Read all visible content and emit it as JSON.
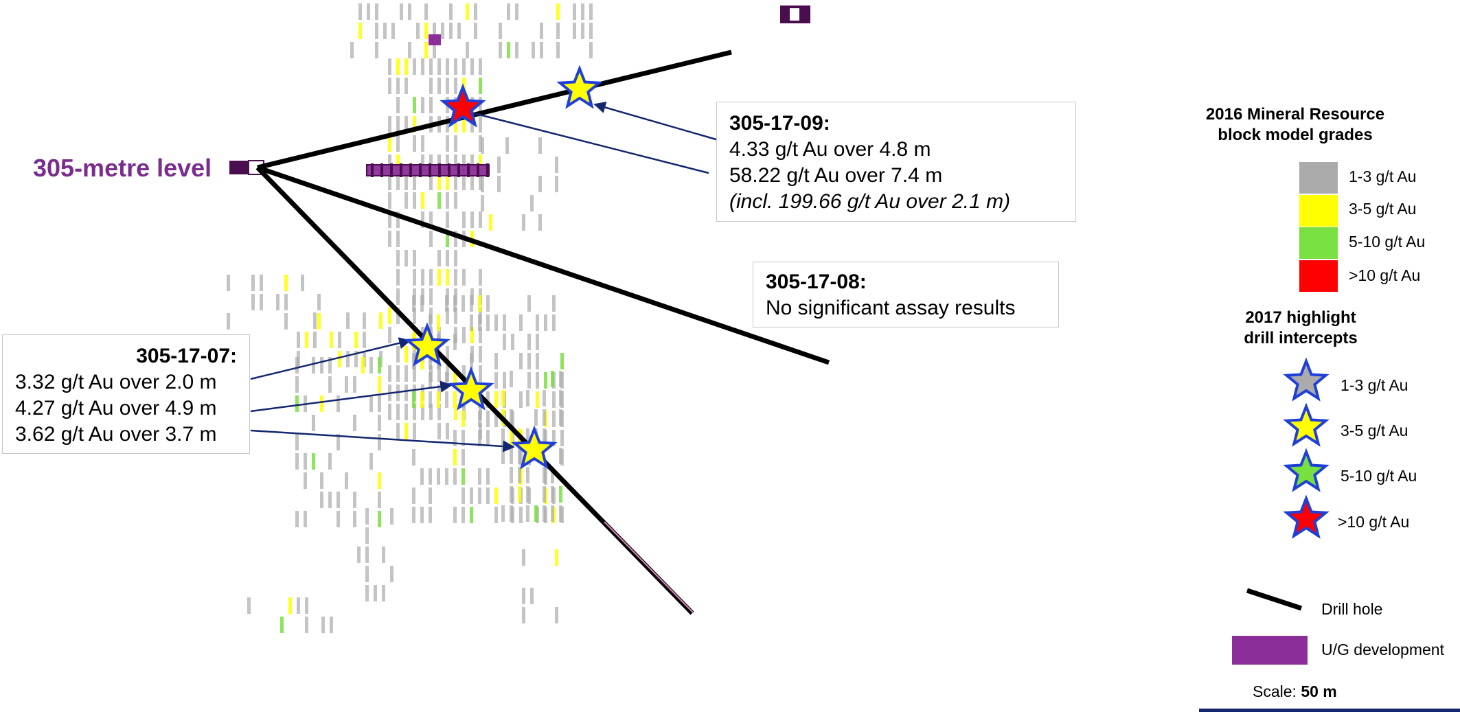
{
  "level_label": "305-metre level",
  "callouts": {
    "hole_09": {
      "title": "305-17-09:",
      "lines": [
        "4.33 g/t Au over 4.8 m",
        "58.22 g/t Au over 7.4 m"
      ],
      "note": "(incl. 199.66 g/t Au over 2.1 m)"
    },
    "hole_08": {
      "title": "305-17-08:",
      "lines": [
        "No significant assay results"
      ]
    },
    "hole_07": {
      "title": "305-17-07:",
      "lines": [
        "3.32 g/t Au over 2.0 m",
        "4.27 g/t Au over 4.9 m",
        "3.62 g/t Au over 3.7 m"
      ]
    }
  },
  "legend": {
    "block_title_1": "2016 Mineral Resource",
    "block_title_2": "block model grades",
    "blocks": [
      {
        "label": "1-3 g/t Au",
        "color": "#ABABAB"
      },
      {
        "label": "3-5 g/t Au",
        "color": "#FFFF00"
      },
      {
        "label": "5-10 g/t Au",
        "color": "#78E040"
      },
      {
        "label": ">10 g/t Au",
        "color": "#FF0000"
      }
    ],
    "star_title_1": "2017 highlight",
    "star_title_2": "drill intercepts",
    "stars": [
      {
        "label": "1-3 g/t Au",
        "color": "#ABABAB"
      },
      {
        "label": "3-5 g/t Au",
        "color": "#FFFF00"
      },
      {
        "label": "5-10 g/t Au",
        "color": "#78E040"
      },
      {
        "label": ">10 g/t Au",
        "color": "#FF0000"
      }
    ],
    "drill_hole": "Drill hole",
    "ug_dev": "U/G development",
    "scale_prefix": "Scale: ",
    "scale_value": "50 m"
  },
  "colors": {
    "star_outline": "#1F3FD8",
    "arrow": "#13266E",
    "development": "#8B2E9A",
    "development_dark": "#4A0E4E",
    "scale_bar": "#13266E"
  }
}
